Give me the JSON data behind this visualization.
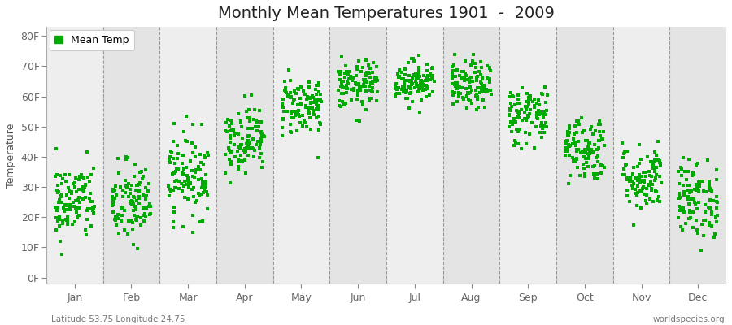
{
  "title": "Monthly Mean Temperatures 1901  -  2009",
  "ylabel": "Temperature",
  "xlabel_bottom_left": "Latitude 53.75 Longitude 24.75",
  "xlabel_bottom_right": "worldspecies.org",
  "ytick_labels": [
    "0F",
    "10F",
    "20F",
    "30F",
    "40F",
    "50F",
    "60F",
    "70F",
    "80F"
  ],
  "ytick_values": [
    0,
    10,
    20,
    30,
    40,
    50,
    60,
    70,
    80
  ],
  "ylim": [
    -2,
    83
  ],
  "months": [
    "Jan",
    "Feb",
    "Mar",
    "Apr",
    "May",
    "Jun",
    "Jul",
    "Aug",
    "Sep",
    "Oct",
    "Nov",
    "Dec"
  ],
  "dot_color": "#00aa00",
  "background_color": "#ffffff",
  "plot_bg_light": "#eeeeee",
  "plot_bg_dark": "#e4e4e4",
  "title_fontsize": 14,
  "label_fontsize": 9,
  "tick_fontsize": 9,
  "legend_fontsize": 9,
  "monthly_means_F": [
    25.0,
    24.5,
    34.0,
    46.0,
    57.0,
    63.5,
    65.0,
    63.5,
    54.0,
    43.0,
    33.0,
    26.0
  ],
  "monthly_std_F": [
    6.5,
    7.0,
    7.0,
    5.5,
    5.0,
    4.0,
    3.5,
    4.0,
    5.0,
    5.5,
    5.5,
    6.5
  ],
  "n_years": 109,
  "seed": 42
}
